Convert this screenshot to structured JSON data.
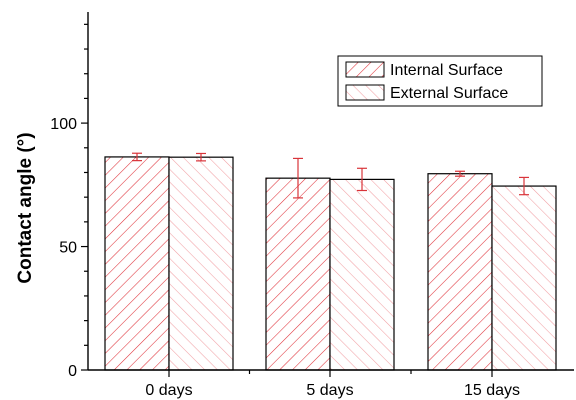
{
  "chart_data": {
    "type": "bar",
    "categories": [
      "0 days",
      "5 days",
      "15 days"
    ],
    "series": [
      {
        "name": "Internal Surface",
        "values": [
          86.3,
          77.7,
          79.5
        ],
        "errors": [
          1.5,
          8.0,
          1.0
        ],
        "hatch": "forward",
        "color": "#e0323a"
      },
      {
        "name": "External Surface",
        "values": [
          86.2,
          77.2,
          74.5
        ],
        "errors": [
          1.5,
          4.5,
          3.5
        ],
        "hatch": "backward",
        "color": "#f2a0a4"
      }
    ],
    "xlabel": "",
    "ylabel": "Contact angle (°)",
    "ylim": [
      0,
      145
    ],
    "yticks": [
      0,
      50,
      100
    ],
    "legend_position": "top-right",
    "grid": false,
    "error_bar_color": "#d9343a"
  }
}
